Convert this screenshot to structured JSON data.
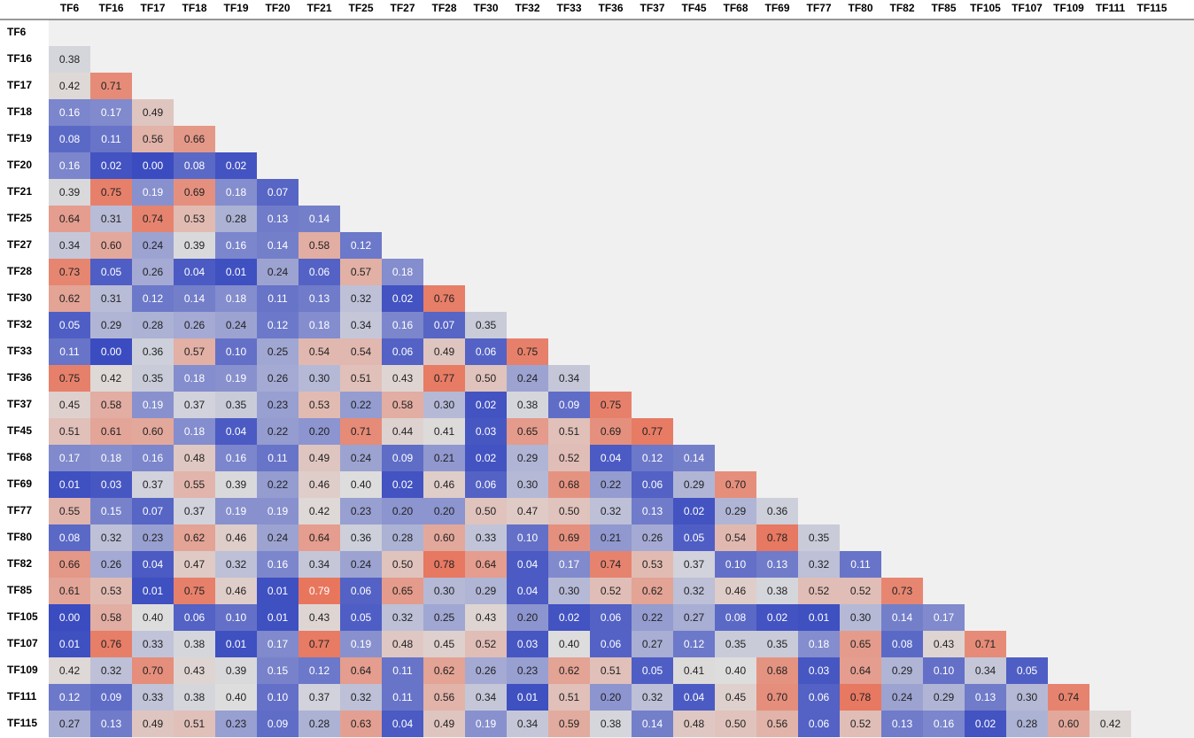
{
  "chart_data": {
    "type": "heatmap",
    "labels": [
      "TF6",
      "TF16",
      "TF17",
      "TF18",
      "TF19",
      "TF20",
      "TF21",
      "TF25",
      "TF27",
      "TF28",
      "TF30",
      "TF32",
      "TF33",
      "TF36",
      "TF37",
      "TF45",
      "TF68",
      "TF69",
      "TF77",
      "TF80",
      "TF82",
      "TF85",
      "TF105",
      "TF107",
      "TF109",
      "TF111",
      "TF115"
    ],
    "matrix": [
      [],
      [
        0.38
      ],
      [
        0.42,
        0.71
      ],
      [
        0.16,
        0.17,
        0.49
      ],
      [
        0.08,
        0.11,
        0.56,
        0.66
      ],
      [
        0.16,
        0.02,
        0.0,
        0.08,
        0.02
      ],
      [
        0.39,
        0.75,
        0.19,
        0.69,
        0.18,
        0.07
      ],
      [
        0.64,
        0.31,
        0.74,
        0.53,
        0.28,
        0.13,
        0.14
      ],
      [
        0.34,
        0.6,
        0.24,
        0.39,
        0.16,
        0.14,
        0.58,
        0.12
      ],
      [
        0.73,
        0.05,
        0.26,
        0.04,
        0.01,
        0.24,
        0.06,
        0.57,
        0.18
      ],
      [
        0.62,
        0.31,
        0.12,
        0.14,
        0.18,
        0.11,
        0.13,
        0.32,
        0.02,
        0.76
      ],
      [
        0.05,
        0.29,
        0.28,
        0.26,
        0.24,
        0.12,
        0.18,
        0.34,
        0.16,
        0.07,
        0.35
      ],
      [
        0.11,
        0.0,
        0.36,
        0.57,
        0.1,
        0.25,
        0.54,
        0.54,
        0.06,
        0.49,
        0.06,
        0.75
      ],
      [
        0.75,
        0.42,
        0.35,
        0.18,
        0.19,
        0.26,
        0.3,
        0.51,
        0.43,
        0.77,
        0.5,
        0.24,
        0.34
      ],
      [
        0.45,
        0.58,
        0.19,
        0.37,
        0.35,
        0.23,
        0.53,
        0.22,
        0.58,
        0.3,
        0.02,
        0.38,
        0.09,
        0.75
      ],
      [
        0.51,
        0.61,
        0.6,
        0.18,
        0.04,
        0.22,
        0.2,
        0.71,
        0.44,
        0.41,
        0.03,
        0.65,
        0.51,
        0.69,
        0.77
      ],
      [
        0.17,
        0.18,
        0.16,
        0.48,
        0.16,
        0.11,
        0.49,
        0.24,
        0.09,
        0.21,
        0.02,
        0.29,
        0.52,
        0.04,
        0.12,
        0.14
      ],
      [
        0.01,
        0.03,
        0.37,
        0.55,
        0.39,
        0.22,
        0.46,
        0.4,
        0.02,
        0.46,
        0.06,
        0.3,
        0.68,
        0.22,
        0.06,
        0.29,
        0.7
      ],
      [
        0.55,
        0.15,
        0.07,
        0.37,
        0.19,
        0.19,
        0.42,
        0.23,
        0.2,
        0.2,
        0.5,
        0.47,
        0.5,
        0.32,
        0.13,
        0.02,
        0.29,
        0.36
      ],
      [
        0.08,
        0.32,
        0.23,
        0.62,
        0.46,
        0.24,
        0.64,
        0.36,
        0.28,
        0.6,
        0.33,
        0.1,
        0.69,
        0.21,
        0.26,
        0.05,
        0.54,
        0.78,
        0.35
      ],
      [
        0.66,
        0.26,
        0.04,
        0.47,
        0.32,
        0.16,
        0.34,
        0.24,
        0.5,
        0.78,
        0.64,
        0.04,
        0.17,
        0.74,
        0.53,
        0.37,
        0.1,
        0.13,
        0.32,
        0.11
      ],
      [
        0.61,
        0.53,
        0.01,
        0.75,
        0.46,
        0.01,
        0.79,
        0.06,
        0.65,
        0.3,
        0.29,
        0.04,
        0.3,
        0.52,
        0.62,
        0.32,
        0.46,
        0.38,
        0.52,
        0.52,
        0.73
      ],
      [
        0.0,
        0.58,
        0.4,
        0.06,
        0.1,
        0.01,
        0.43,
        0.05,
        0.32,
        0.25,
        0.43,
        0.2,
        0.02,
        0.06,
        0.22,
        0.27,
        0.08,
        0.02,
        0.01,
        0.3,
        0.14,
        0.17
      ],
      [
        0.01,
        0.76,
        0.33,
        0.38,
        0.01,
        0.17,
        0.77,
        0.19,
        0.48,
        0.45,
        0.52,
        0.03,
        0.4,
        0.06,
        0.27,
        0.12,
        0.35,
        0.35,
        0.18,
        0.65,
        0.08,
        0.43,
        0.71
      ],
      [
        0.42,
        0.32,
        0.7,
        0.43,
        0.39,
        0.15,
        0.12,
        0.64,
        0.11,
        0.62,
        0.26,
        0.23,
        0.62,
        0.51,
        0.05,
        0.41,
        0.4,
        0.68,
        0.03,
        0.64,
        0.29,
        0.1,
        0.34,
        0.05
      ],
      [
        0.12,
        0.09,
        0.33,
        0.38,
        0.4,
        0.1,
        0.37,
        0.32,
        0.11,
        0.56,
        0.34,
        0.01,
        0.51,
        0.2,
        0.32,
        0.04,
        0.45,
        0.7,
        0.06,
        0.78,
        0.24,
        0.29,
        0.13,
        0.3,
        0.74
      ],
      [
        0.27,
        0.13,
        0.49,
        0.51,
        0.23,
        0.09,
        0.28,
        0.63,
        0.04,
        0.49,
        0.19,
        0.34,
        0.59,
        0.38,
        0.14,
        0.48,
        0.5,
        0.56,
        0.06,
        0.52,
        0.13,
        0.16,
        0.02,
        0.28,
        0.6,
        0.42
      ]
    ],
    "color_scale": {
      "name": "coolwarm",
      "min": 0.0,
      "max": 0.8,
      "low_color": "#3b4cc0",
      "mid_color": "#dddddd",
      "high_color": "#e8735a"
    },
    "cell_label_format": "0.00",
    "lower_triangle_only": true,
    "empty_color": "#f0f0f0"
  }
}
